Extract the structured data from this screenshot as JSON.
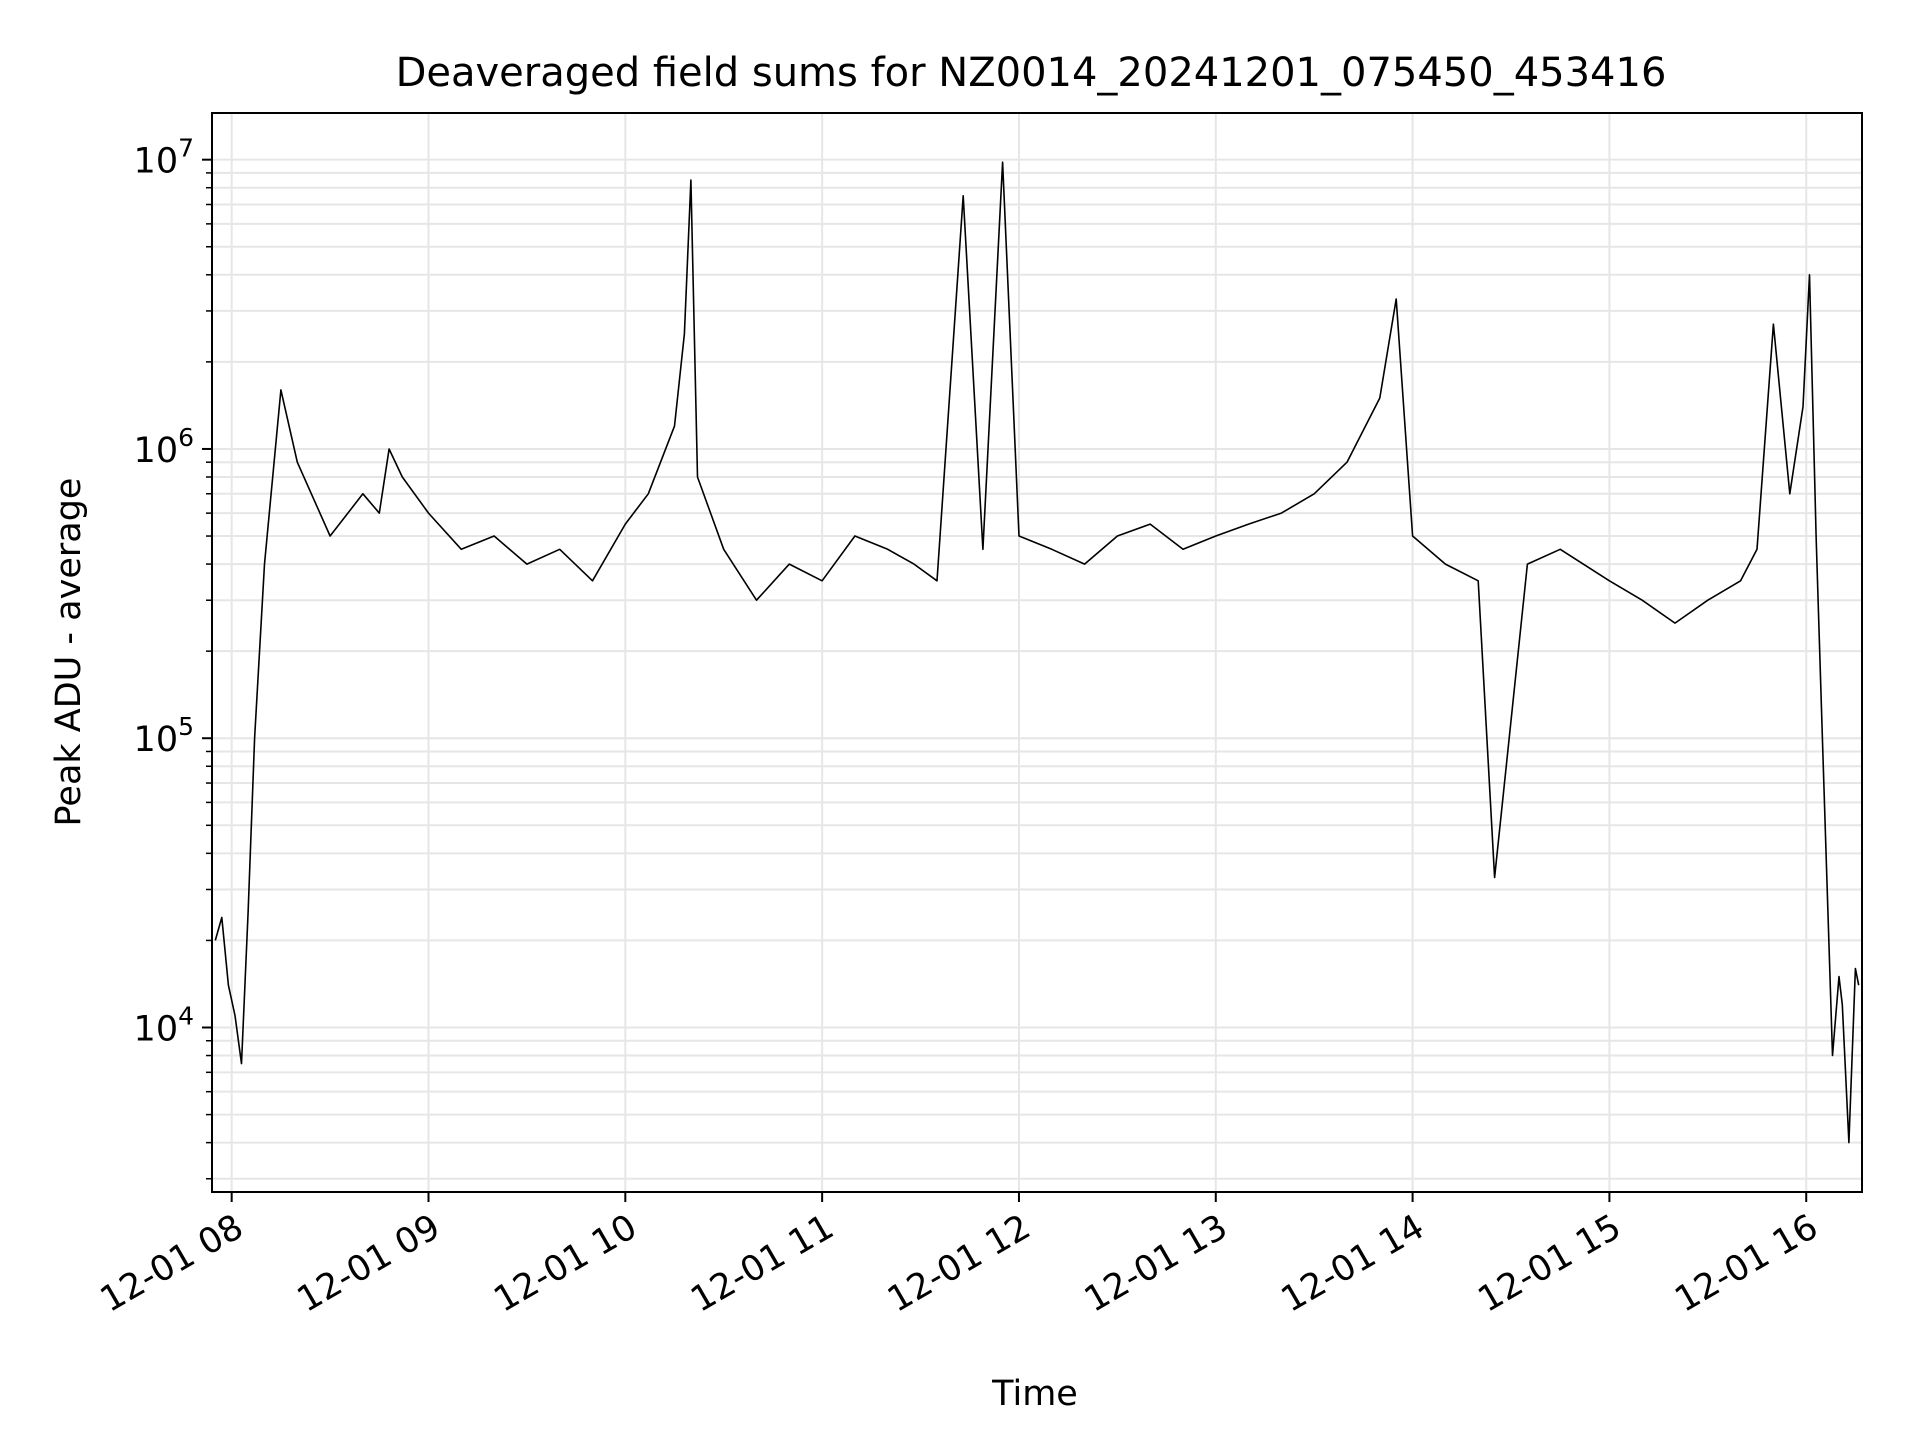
{
  "chart_data": {
    "type": "line",
    "title": "Deaveraged field sums for NZ0014_20241201_075450_453416",
    "xlabel": "Time",
    "ylabel": "Peak ADU - average",
    "yscale": "log",
    "ylim": [
      2700,
      14500000
    ],
    "xlim": [
      "2024-12-01 07:54",
      "2024-12-01 16:17"
    ],
    "x_ticks": [
      "12-01 08",
      "12-01 09",
      "12-01 10",
      "12-01 11",
      "12-01 12",
      "12-01 13",
      "12-01 14",
      "12-01 15",
      "12-01 16"
    ],
    "y_ticks": [
      {
        "base": "10",
        "exp": "4"
      },
      {
        "base": "10",
        "exp": "5"
      },
      {
        "base": "10",
        "exp": "6"
      },
      {
        "base": "10",
        "exp": "7"
      }
    ],
    "grid": true,
    "line_color": "#000000",
    "series": [
      {
        "x": [
          "2024-12-01 07:55",
          "2024-12-01 07:57",
          "2024-12-01 07:59",
          "2024-12-01 08:01",
          "2024-12-01 08:03",
          "2024-12-01 08:05",
          "2024-12-01 08:07",
          "2024-12-01 08:10",
          "2024-12-01 08:15",
          "2024-12-01 08:20",
          "2024-12-01 08:30",
          "2024-12-01 08:40",
          "2024-12-01 08:45",
          "2024-12-01 08:48",
          "2024-12-01 08:52",
          "2024-12-01 09:00",
          "2024-12-01 09:10",
          "2024-12-01 09:20",
          "2024-12-01 09:30",
          "2024-12-01 09:40",
          "2024-12-01 09:50",
          "2024-12-01 10:00",
          "2024-12-01 10:07",
          "2024-12-01 10:15",
          "2024-12-01 10:18",
          "2024-12-01 10:20",
          "2024-12-01 10:22",
          "2024-12-01 10:30",
          "2024-12-01 10:40",
          "2024-12-01 10:50",
          "2024-12-01 11:00",
          "2024-12-01 11:10",
          "2024-12-01 11:20",
          "2024-12-01 11:28",
          "2024-12-01 11:35",
          "2024-12-01 11:43",
          "2024-12-01 11:49",
          "2024-12-01 11:55",
          "2024-12-01 12:00",
          "2024-12-01 12:10",
          "2024-12-01 12:20",
          "2024-12-01 12:30",
          "2024-12-01 12:40",
          "2024-12-01 12:50",
          "2024-12-01 13:00",
          "2024-12-01 13:10",
          "2024-12-01 13:20",
          "2024-12-01 13:30",
          "2024-12-01 13:40",
          "2024-12-01 13:50",
          "2024-12-01 13:55",
          "2024-12-01 14:00",
          "2024-12-01 14:10",
          "2024-12-01 14:20",
          "2024-12-01 14:25",
          "2024-12-01 14:35",
          "2024-12-01 14:45",
          "2024-12-01 15:00",
          "2024-12-01 15:10",
          "2024-12-01 15:20",
          "2024-12-01 15:30",
          "2024-12-01 15:40",
          "2024-12-01 15:45",
          "2024-12-01 15:50",
          "2024-12-01 15:55",
          "2024-12-01 15:59",
          "2024-12-01 16:01",
          "2024-12-01 16:03",
          "2024-12-01 16:05",
          "2024-12-01 16:08",
          "2024-12-01 16:10",
          "2024-12-01 16:11",
          "2024-12-01 16:13",
          "2024-12-01 16:15",
          "2024-12-01 16:16"
        ],
        "values": [
          20000,
          24000,
          14000,
          11000,
          7500,
          25000,
          100000,
          400000,
          1600000,
          900000,
          500000,
          700000,
          600000,
          1000000,
          800000,
          600000,
          450000,
          500000,
          400000,
          450000,
          350000,
          550000,
          700000,
          1200000,
          2500000,
          8500000,
          800000,
          450000,
          300000,
          400000,
          350000,
          500000,
          450000,
          400000,
          350000,
          7500000,
          450000,
          9800000,
          500000,
          450000,
          400000,
          500000,
          550000,
          450000,
          500000,
          550000,
          600000,
          700000,
          900000,
          1500000,
          3300000,
          500000,
          400000,
          350000,
          33000,
          400000,
          450000,
          350000,
          300000,
          250000,
          300000,
          350000,
          450000,
          2700000,
          700000,
          1400000,
          4000000,
          500000,
          95000,
          8000,
          15000,
          12000,
          4000,
          16000,
          14000
        ]
      }
    ]
  }
}
